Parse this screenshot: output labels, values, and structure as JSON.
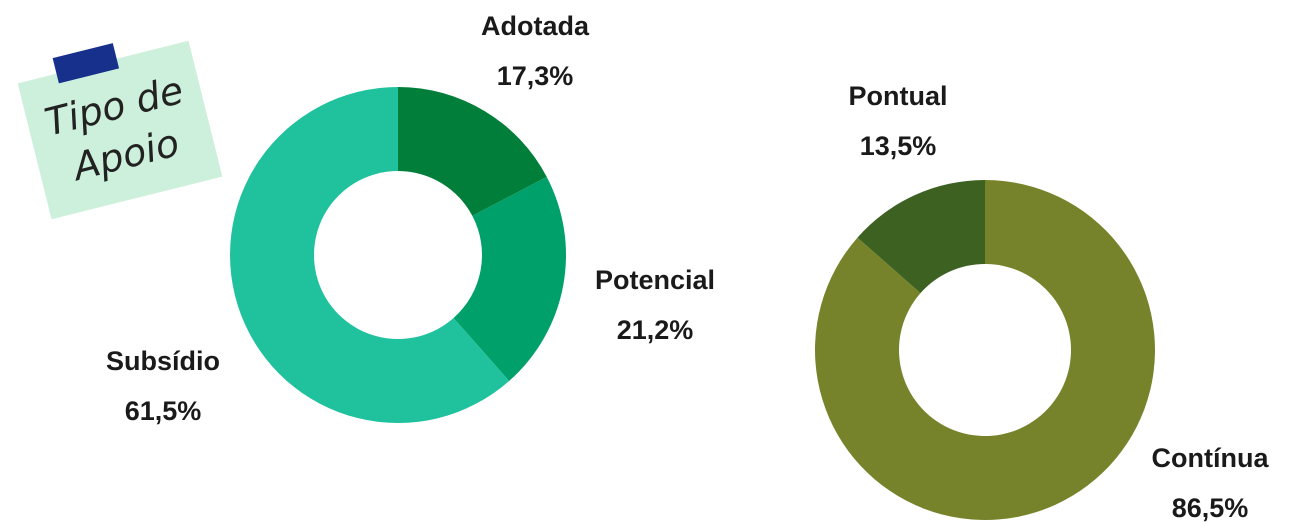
{
  "note": {
    "lines": [
      "Tipo de",
      "Apoio"
    ]
  },
  "chart_data": [
    {
      "type": "pie",
      "categories": [
        "Adotada",
        "Potencial",
        "Subsídio"
      ],
      "values": [
        17.3,
        21.2,
        61.5
      ],
      "value_labels": [
        "17,3%",
        "21,2%",
        "61,5%"
      ],
      "colors": [
        "#007e3a",
        "#00a06a",
        "#20c29e"
      ]
    },
    {
      "type": "pie",
      "categories": [
        "Contínua",
        "Pontual"
      ],
      "values": [
        86.5,
        13.5
      ],
      "value_labels": [
        "86,5%",
        "13,5%"
      ],
      "colors": [
        "#77832b",
        "#3c6121"
      ]
    }
  ]
}
